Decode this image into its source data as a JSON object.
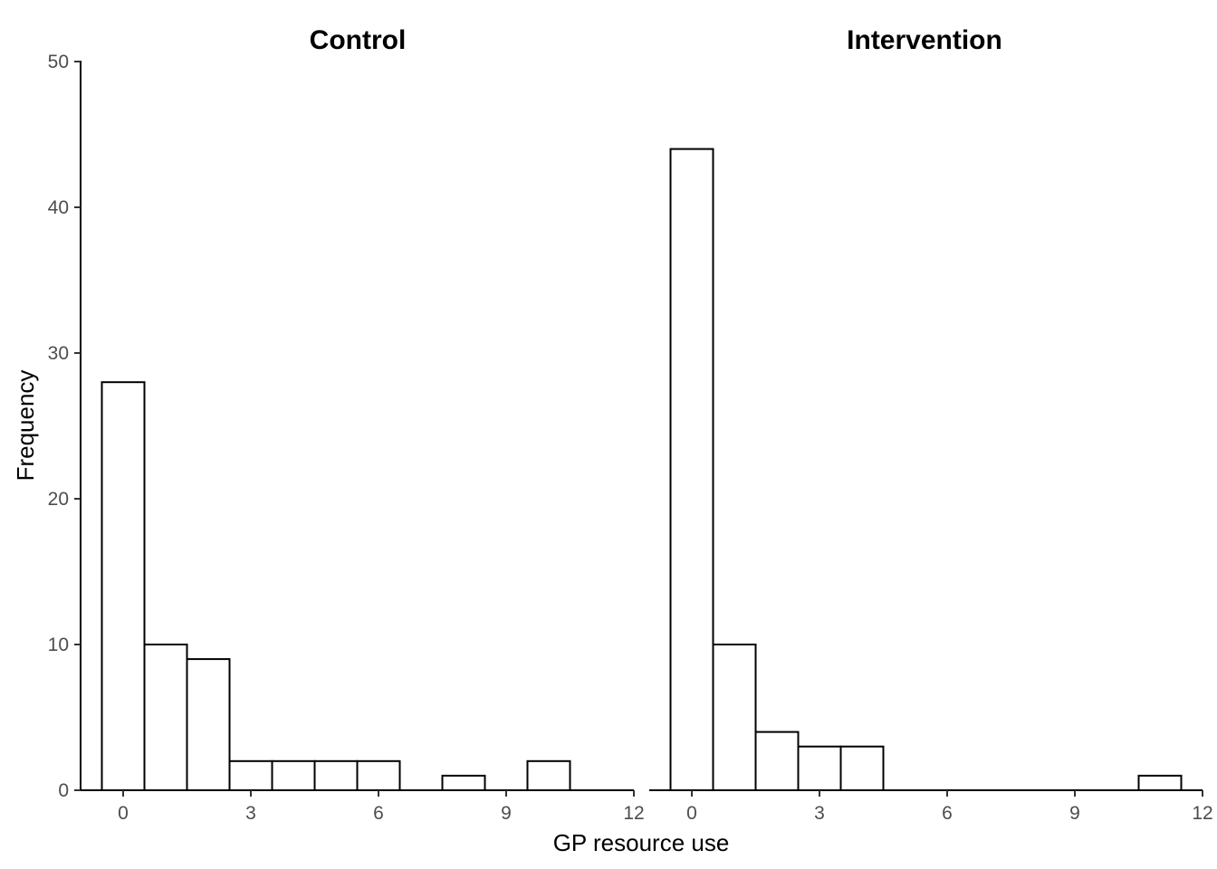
{
  "chart_data": {
    "type": "bar",
    "subtype": "faceted-histogram",
    "xlabel": "GP resource use",
    "ylabel": "Frequency",
    "ylim": [
      0,
      50
    ],
    "yticks": [
      0,
      10,
      20,
      30,
      40,
      50
    ],
    "xlim": [
      -1,
      12
    ],
    "xticks": [
      0,
      3,
      6,
      9,
      12
    ],
    "binwidth": 1,
    "grid": false,
    "legend": "none",
    "bar_fill": "#ffffff",
    "bar_stroke": "#000000",
    "panels": [
      {
        "title": "Control",
        "bins": [
          {
            "x": 0,
            "count": 28
          },
          {
            "x": 1,
            "count": 10
          },
          {
            "x": 2,
            "count": 9
          },
          {
            "x": 3,
            "count": 2
          },
          {
            "x": 4,
            "count": 2
          },
          {
            "x": 5,
            "count": 2
          },
          {
            "x": 6,
            "count": 2
          },
          {
            "x": 7,
            "count": 0
          },
          {
            "x": 8,
            "count": 1
          },
          {
            "x": 9,
            "count": 0
          },
          {
            "x": 10,
            "count": 2
          }
        ]
      },
      {
        "title": "Intervention",
        "bins": [
          {
            "x": 0,
            "count": 44
          },
          {
            "x": 1,
            "count": 10
          },
          {
            "x": 2,
            "count": 4
          },
          {
            "x": 3,
            "count": 3
          },
          {
            "x": 4,
            "count": 3
          },
          {
            "x": 5,
            "count": 0
          },
          {
            "x": 6,
            "count": 0
          },
          {
            "x": 7,
            "count": 0
          },
          {
            "x": 8,
            "count": 0
          },
          {
            "x": 9,
            "count": 0
          },
          {
            "x": 10,
            "count": 0
          },
          {
            "x": 11,
            "count": 1
          }
        ]
      }
    ]
  }
}
